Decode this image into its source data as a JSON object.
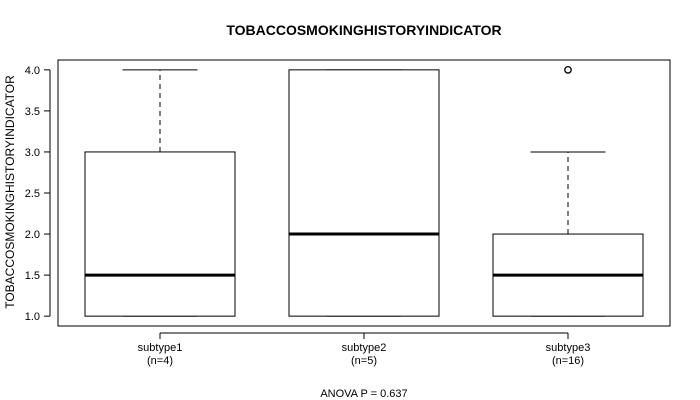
{
  "chart_data": {
    "type": "boxplot",
    "title": "TOBACCOSMOKINGHISTORYINDICATOR",
    "ylabel": "TOBACCOSMOKINGHISTORYINDICATOR",
    "xlabel": "",
    "ylim": [
      0.88,
      4.12
    ],
    "yticks": [
      1.0,
      1.5,
      2.0,
      2.5,
      3.0,
      3.5,
      4.0
    ],
    "ytick_labels": [
      "1.0",
      "1.5",
      "2.0",
      "2.5",
      "3.0",
      "3.5",
      "4.0"
    ],
    "groups": [
      {
        "name": "subtype1",
        "n_label": "(n=4)",
        "whisker_low": 1.0,
        "q1": 1.0,
        "median": 1.5,
        "q3": 3.0,
        "whisker_high": 4.0,
        "outliers": []
      },
      {
        "name": "subtype2",
        "n_label": "(n=5)",
        "whisker_low": 1.0,
        "q1": 1.0,
        "median": 2.0,
        "q3": 4.0,
        "whisker_high": 4.0,
        "outliers": []
      },
      {
        "name": "subtype3",
        "n_label": "(n=16)",
        "whisker_low": 1.0,
        "q1": 1.0,
        "median": 1.5,
        "q3": 2.0,
        "whisker_high": 3.0,
        "outliers": [
          4.0
        ]
      }
    ],
    "annotation": "ANOVA P = 0.637",
    "grid": false
  }
}
